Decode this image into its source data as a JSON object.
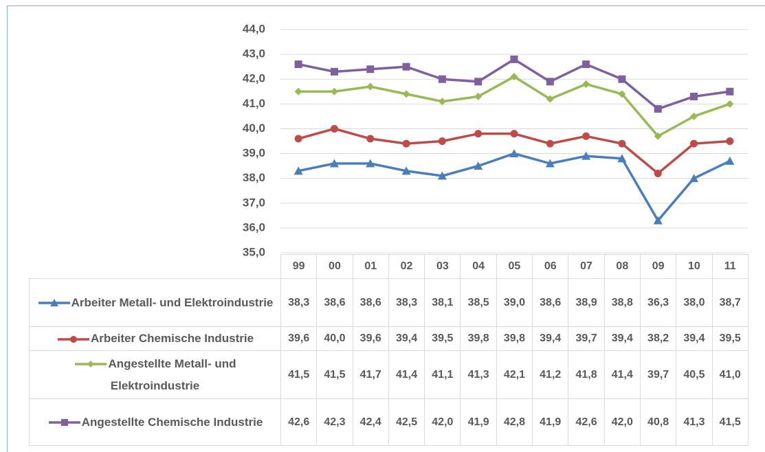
{
  "chart_data": {
    "type": "line",
    "categories": [
      "99",
      "00",
      "01",
      "02",
      "03",
      "04",
      "05",
      "06",
      "07",
      "08",
      "09",
      "10",
      "11"
    ],
    "ylim": [
      35,
      44
    ],
    "yticks": [
      {
        "value": 35,
        "label": "35,0"
      },
      {
        "value": 36,
        "label": "36,0"
      },
      {
        "value": 37,
        "label": "37,0"
      },
      {
        "value": 38,
        "label": "38,0"
      },
      {
        "value": 39,
        "label": "39,0"
      },
      {
        "value": 40,
        "label": "40,0"
      },
      {
        "value": 41,
        "label": "41,0"
      },
      {
        "value": 42,
        "label": "42,0"
      },
      {
        "value": 43,
        "label": "43,0"
      },
      {
        "value": 44,
        "label": "44,0"
      }
    ],
    "grid": true,
    "series": [
      {
        "name": "Arbeiter Metall- und Elektroindustrie",
        "color": "#4a7ebb",
        "marker": "triangle",
        "values": [
          38.3,
          38.6,
          38.6,
          38.3,
          38.1,
          38.5,
          39.0,
          38.6,
          38.9,
          38.8,
          36.3,
          38.0,
          38.7
        ],
        "value_labels": [
          "38,3",
          "38,6",
          "38,6",
          "38,3",
          "38,1",
          "38,5",
          "39,0",
          "38,6",
          "38,9",
          "38,8",
          "36,3",
          "38,0",
          "38,7"
        ]
      },
      {
        "name": "Arbeiter Chemische Industrie",
        "color": "#be4b48",
        "marker": "circle",
        "values": [
          39.6,
          40.0,
          39.6,
          39.4,
          39.5,
          39.8,
          39.8,
          39.4,
          39.7,
          39.4,
          38.2,
          39.4,
          39.5
        ],
        "value_labels": [
          "39,6",
          "40,0",
          "39,6",
          "39,4",
          "39,5",
          "39,8",
          "39,8",
          "39,4",
          "39,7",
          "39,4",
          "38,2",
          "39,4",
          "39,5"
        ]
      },
      {
        "name": "Angestellte Metall- und Elektroindustrie",
        "color": "#98b954",
        "marker": "diamond",
        "values": [
          41.5,
          41.5,
          41.7,
          41.4,
          41.1,
          41.3,
          42.1,
          41.2,
          41.8,
          41.4,
          39.7,
          40.5,
          41.0
        ],
        "value_labels": [
          "41,5",
          "41,5",
          "41,7",
          "41,4",
          "41,1",
          "41,3",
          "42,1",
          "41,2",
          "41,8",
          "41,4",
          "39,7",
          "40,5",
          "41,0"
        ]
      },
      {
        "name": "Angestellte Chemische Industrie",
        "color": "#7d60a0",
        "marker": "square",
        "values": [
          42.6,
          42.3,
          42.4,
          42.5,
          42.0,
          41.9,
          42.8,
          41.9,
          42.6,
          42.0,
          40.8,
          41.3,
          41.5
        ],
        "value_labels": [
          "42,6",
          "42,3",
          "42,4",
          "42,5",
          "42,0",
          "41,9",
          "42,8",
          "41,9",
          "42,6",
          "42,0",
          "40,8",
          "41,3",
          "41,5"
        ]
      }
    ]
  }
}
